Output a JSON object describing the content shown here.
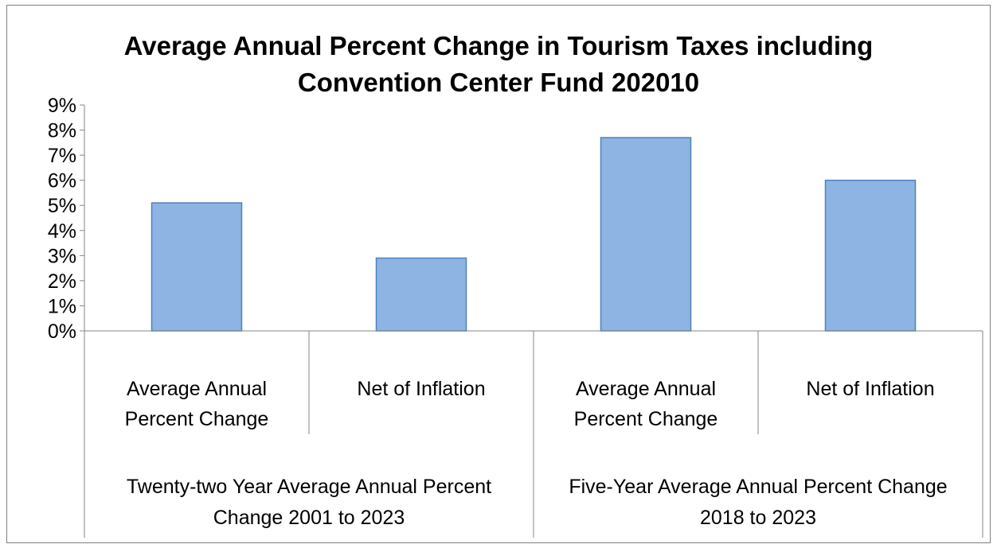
{
  "chart_data": {
    "type": "bar",
    "title_lines": [
      "Average Annual Percent Change in Tourism Taxes including",
      "Convention Center Fund 202010"
    ],
    "categories": [
      {
        "label": [
          "Average Annual",
          "Percent Change"
        ],
        "group": 0
      },
      {
        "label": [
          "Net of Inflation"
        ],
        "group": 0
      },
      {
        "label": [
          "Average Annual",
          "Percent Change"
        ],
        "group": 1
      },
      {
        "label": [
          "Net of Inflation"
        ],
        "group": 1
      }
    ],
    "groups": [
      {
        "label": [
          "Twenty-two Year Average Annual Percent",
          "Change 2001 to 2023"
        ]
      },
      {
        "label": [
          "Five-Year Average Annual Percent Change",
          "2018 to 2023"
        ]
      }
    ],
    "series": [
      {
        "values": [
          5.1,
          2.9,
          7.7,
          6.0
        ]
      }
    ],
    "y_ticks": [
      "0%",
      "1%",
      "2%",
      "3%",
      "4%",
      "5%",
      "6%",
      "7%",
      "8%",
      "9%"
    ],
    "ylim": [
      0,
      9
    ],
    "grid": false,
    "legend": "none",
    "colors": {
      "bar_fill": "#8DB4E2",
      "bar_stroke": "#4F81BD",
      "axis": "#868686"
    }
  }
}
